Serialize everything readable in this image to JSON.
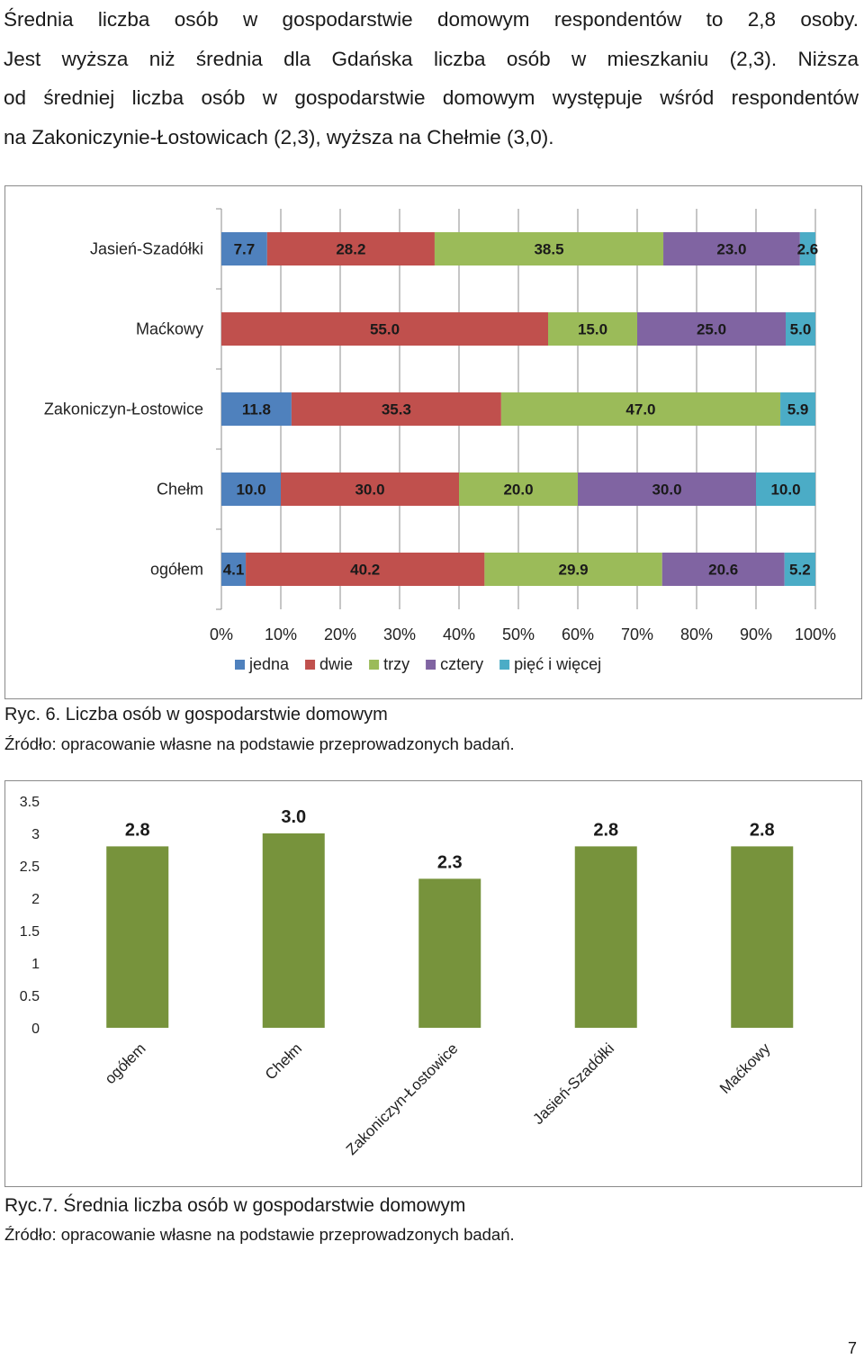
{
  "text": {
    "lines": [
      "Średnia liczba osób w gospodarstwie domowym respondentów to 2,8 osoby.",
      "Jest wyższa niż średnia dla Gdańska liczba osób w mieszkaniu (2,3). Niższa",
      "od średniej liczba osób w gospodarstwie domowym występuje wśród respondentów",
      "na Zakoniczynie-Łostowicach (2,3), wyższa na Chełmie (3,0)."
    ]
  },
  "figure1": {
    "caption": "Ryc. 6. Liczba osób w gospodarstwie domowym",
    "source": "Źródło: opracowanie własne na podstawie przeprowadzonych badań."
  },
  "figure2": {
    "caption": "Ryc.7. Średnia liczba osób w gospodarstwie domowym",
    "source": "Źródło: opracowanie własne na podstawie przeprowadzonych badań."
  },
  "page_number": "7",
  "chart_data": [
    {
      "type": "bar",
      "orientation": "horizontal",
      "stacked": "percent",
      "categories": [
        "Jasień-Szadółki",
        "Maćkowy",
        "Zakoniczyn-Łostowice",
        "Chełm",
        "ogółem"
      ],
      "series": [
        {
          "name": "jedna",
          "color": "#4f81bd",
          "values": [
            7.7,
            0,
            11.8,
            10.0,
            4.1
          ],
          "labels": [
            "7.7",
            "",
            "11.8",
            "10.0",
            "4.1"
          ]
        },
        {
          "name": "dwie",
          "color": "#c0504d",
          "values": [
            28.2,
            55.0,
            35.3,
            30.0,
            40.2
          ],
          "labels": [
            "28.2",
            "55.0",
            "35.3",
            "30.0",
            "40.2"
          ]
        },
        {
          "name": "trzy",
          "color": "#9bbb59",
          "values": [
            38.5,
            15.0,
            47.0,
            20.0,
            29.9
          ],
          "labels": [
            "38.5",
            "15.0",
            "47.0",
            "20.0",
            "29.9"
          ]
        },
        {
          "name": "cztery",
          "color": "#8064a2",
          "values": [
            23.0,
            25.0,
            0,
            30.0,
            20.6
          ],
          "labels": [
            "23.0",
            "25.0",
            "",
            "30.0",
            "20.6"
          ]
        },
        {
          "name": "pięć i więcej",
          "color": "#4bacc6",
          "values": [
            2.6,
            5.0,
            5.9,
            10.0,
            5.2
          ],
          "labels": [
            "2.6",
            "5.0",
            "5.9",
            "10.0",
            "5.2"
          ]
        }
      ],
      "xlim": [
        0,
        100
      ],
      "xticks": [
        "0%",
        "10%",
        "20%",
        "30%",
        "40%",
        "50%",
        "60%",
        "70%",
        "80%",
        "90%",
        "100%"
      ],
      "grid": true,
      "legend": "bottom"
    },
    {
      "type": "bar",
      "categories": [
        "ogółem",
        "Chełm",
        "Zakoniczyn-Łostowice",
        "Jasień-Szadółki",
        "Maćkowy"
      ],
      "values": [
        2.8,
        3.0,
        2.3,
        2.8,
        2.8
      ],
      "labels": [
        "2.8",
        "3.0",
        "2.3",
        "2.8",
        "2.8"
      ],
      "yticks": [
        "0",
        "0.5",
        "1",
        "1.5",
        "2",
        "2.5",
        "3",
        "3.5"
      ],
      "ylim": [
        0,
        3.5
      ],
      "color": "#77933c",
      "grid": false
    }
  ]
}
